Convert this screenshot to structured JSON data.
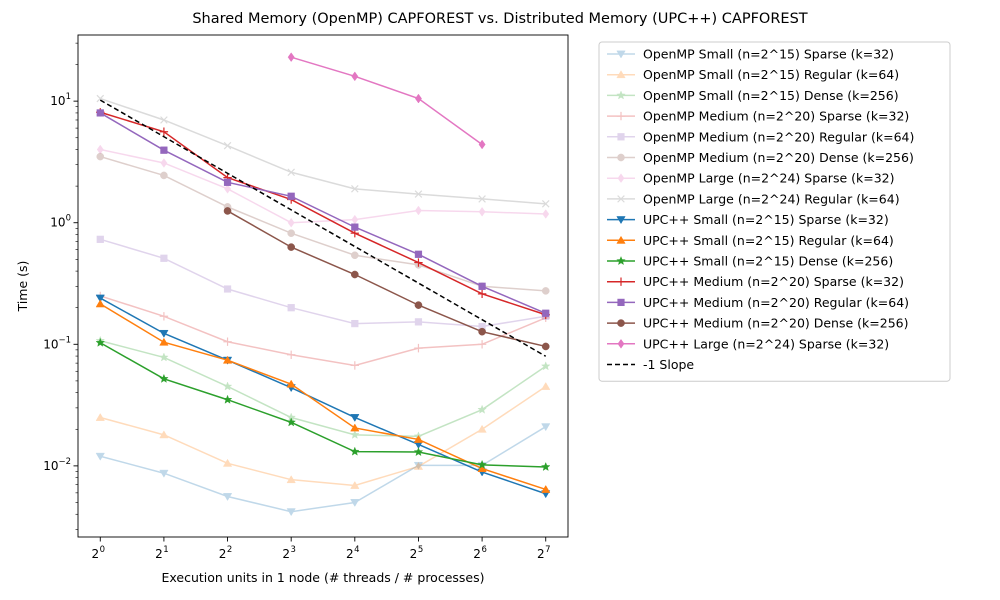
{
  "chart_data": {
    "type": "line",
    "title": "Shared Memory (OpenMP) CAPFOREST vs. Distributed Memory (UPC++) CAPFOREST",
    "xlabel": "Execution units in 1 node (# threads / # processes)",
    "ylabel": "Time (s)",
    "xscale": "log2",
    "yscale": "log10",
    "xlim": [
      0,
      7
    ],
    "ylim": [
      0.0026,
      35
    ],
    "x_ticks": [
      0,
      1,
      2,
      3,
      4,
      5,
      6,
      7
    ],
    "x_tick_base": "2",
    "y_ticks": [
      {
        "value": 0.01,
        "base": "10",
        "exp": "−2"
      },
      {
        "value": 0.1,
        "base": "10",
        "exp": "−1"
      },
      {
        "value": 1,
        "base": "10",
        "exp": "0"
      },
      {
        "value": 10,
        "base": "10",
        "exp": "1"
      }
    ],
    "grid": false,
    "legend_position": "outside-right",
    "series": [
      {
        "name": "OpenMP Small (n=2^15) Sparse (k=32)",
        "color": "#1f77b4",
        "marker": "tri_down",
        "faded": true,
        "dashed": false,
        "x": [
          0,
          1,
          2,
          3,
          4,
          5,
          6,
          7
        ],
        "y": [
          0.012,
          0.0087,
          0.0056,
          0.0042,
          0.005,
          0.0101,
          0.0101,
          0.021
        ]
      },
      {
        "name": "OpenMP Small (n=2^15) Regular (k=64)",
        "color": "#ff7f0e",
        "marker": "tri_up",
        "faded": true,
        "dashed": false,
        "x": [
          0,
          1,
          2,
          3,
          4,
          5,
          6,
          7
        ],
        "y": [
          0.025,
          0.018,
          0.0105,
          0.0077,
          0.0069,
          0.0099,
          0.02,
          0.045
        ]
      },
      {
        "name": "OpenMP Small (n=2^15) Dense (k=256)",
        "color": "#2ca02c",
        "marker": "star",
        "faded": true,
        "dashed": false,
        "x": [
          0,
          1,
          2,
          3,
          4,
          5,
          6,
          7
        ],
        "y": [
          0.107,
          0.078,
          0.045,
          0.025,
          0.018,
          0.0175,
          0.029,
          0.066
        ]
      },
      {
        "name": "OpenMP Medium (n=2^20) Sparse (k=32)",
        "color": "#d62728",
        "marker": "plus",
        "faded": true,
        "dashed": false,
        "x": [
          0,
          1,
          2,
          3,
          4,
          5,
          6,
          7
        ],
        "y": [
          0.25,
          0.17,
          0.105,
          0.082,
          0.067,
          0.093,
          0.1,
          0.165
        ]
      },
      {
        "name": "OpenMP Medium (n=2^20) Regular (k=64)",
        "color": "#9467bd",
        "marker": "square",
        "faded": true,
        "dashed": false,
        "x": [
          0,
          1,
          2,
          3,
          4,
          5,
          6,
          7
        ],
        "y": [
          0.73,
          0.51,
          0.285,
          0.2,
          0.148,
          0.153,
          0.14,
          0.17
        ]
      },
      {
        "name": "OpenMP Medium (n=2^20) Dense (k=256)",
        "color": "#8c564b",
        "marker": "circle",
        "faded": true,
        "dashed": false,
        "x": [
          0,
          1,
          2,
          3,
          4,
          5,
          6,
          7
        ],
        "y": [
          3.5,
          2.45,
          1.35,
          0.82,
          0.54,
          0.45,
          0.3,
          0.275
        ]
      },
      {
        "name": "OpenMP Large (n=2^24) Sparse (k=32)",
        "color": "#e377c2",
        "marker": "diamond",
        "faded": true,
        "dashed": false,
        "x": [
          0,
          1,
          2,
          3,
          4,
          5,
          6,
          7
        ],
        "y": [
          4.0,
          3.1,
          1.9,
          1.0,
          1.06,
          1.26,
          1.23,
          1.18
        ]
      },
      {
        "name": "OpenMP Large (n=2^24) Regular (k=64)",
        "color": "#7f7f7f",
        "marker": "x",
        "faded": true,
        "dashed": false,
        "x": [
          0,
          1,
          2,
          3,
          4,
          5,
          6,
          7
        ],
        "y": [
          10.5,
          7.0,
          4.3,
          2.6,
          1.9,
          1.72,
          1.57,
          1.43
        ]
      },
      {
        "name": "UPC++ Small (n=2^15) Sparse (k=32)",
        "color": "#1f77b4",
        "marker": "tri_down",
        "faded": false,
        "dashed": false,
        "x": [
          0,
          1,
          2,
          3,
          4,
          5,
          6,
          7
        ],
        "y": [
          0.24,
          0.123,
          0.074,
          0.044,
          0.025,
          0.015,
          0.0089,
          0.0059
        ]
      },
      {
        "name": "UPC++ Small (n=2^15) Regular (k=64)",
        "color": "#ff7f0e",
        "marker": "tri_up",
        "faded": false,
        "dashed": false,
        "x": [
          0,
          1,
          2,
          3,
          4,
          5,
          6,
          7
        ],
        "y": [
          0.215,
          0.104,
          0.074,
          0.047,
          0.0205,
          0.0165,
          0.0095,
          0.0064
        ]
      },
      {
        "name": "UPC++ Small (n=2^15) Dense (k=256)",
        "color": "#2ca02c",
        "marker": "star",
        "faded": false,
        "dashed": false,
        "x": [
          0,
          1,
          2,
          3,
          4,
          5,
          6,
          7
        ],
        "y": [
          0.103,
          0.052,
          0.035,
          0.0228,
          0.0131,
          0.013,
          0.0102,
          0.0098
        ]
      },
      {
        "name": "UPC++ Medium (n=2^20) Sparse (k=32)",
        "color": "#d62728",
        "marker": "plus",
        "faded": false,
        "dashed": false,
        "x": [
          0,
          1,
          2,
          3,
          4,
          5,
          6,
          7
        ],
        "y": [
          8.1,
          5.6,
          2.35,
          1.55,
          0.82,
          0.47,
          0.26,
          0.175
        ]
      },
      {
        "name": "UPC++ Medium (n=2^20) Regular (k=64)",
        "color": "#9467bd",
        "marker": "square",
        "faded": false,
        "dashed": false,
        "x": [
          0,
          1,
          2,
          3,
          4,
          5,
          6,
          7
        ],
        "y": [
          8.0,
          3.95,
          2.15,
          1.65,
          0.92,
          0.55,
          0.3,
          0.18
        ]
      },
      {
        "name": "UPC++ Medium (n=2^20) Dense (k=256)",
        "color": "#8c564b",
        "marker": "circle",
        "faded": false,
        "dashed": false,
        "x": [
          2,
          3,
          4,
          5,
          6,
          7
        ],
        "y": [
          1.25,
          0.63,
          0.375,
          0.21,
          0.127,
          0.096
        ]
      },
      {
        "name": "UPC++ Large (n=2^24) Sparse (k=32)",
        "color": "#e377c2",
        "marker": "diamond",
        "faded": false,
        "dashed": false,
        "x": [
          3,
          4,
          5,
          6
        ],
        "y": [
          23,
          16,
          10.5,
          4.4
        ]
      },
      {
        "name": "-1 Slope",
        "color": "#000000",
        "marker": "none",
        "faded": false,
        "dashed": true,
        "x": [
          0,
          7
        ],
        "y": [
          10.2,
          0.0797
        ]
      }
    ]
  }
}
